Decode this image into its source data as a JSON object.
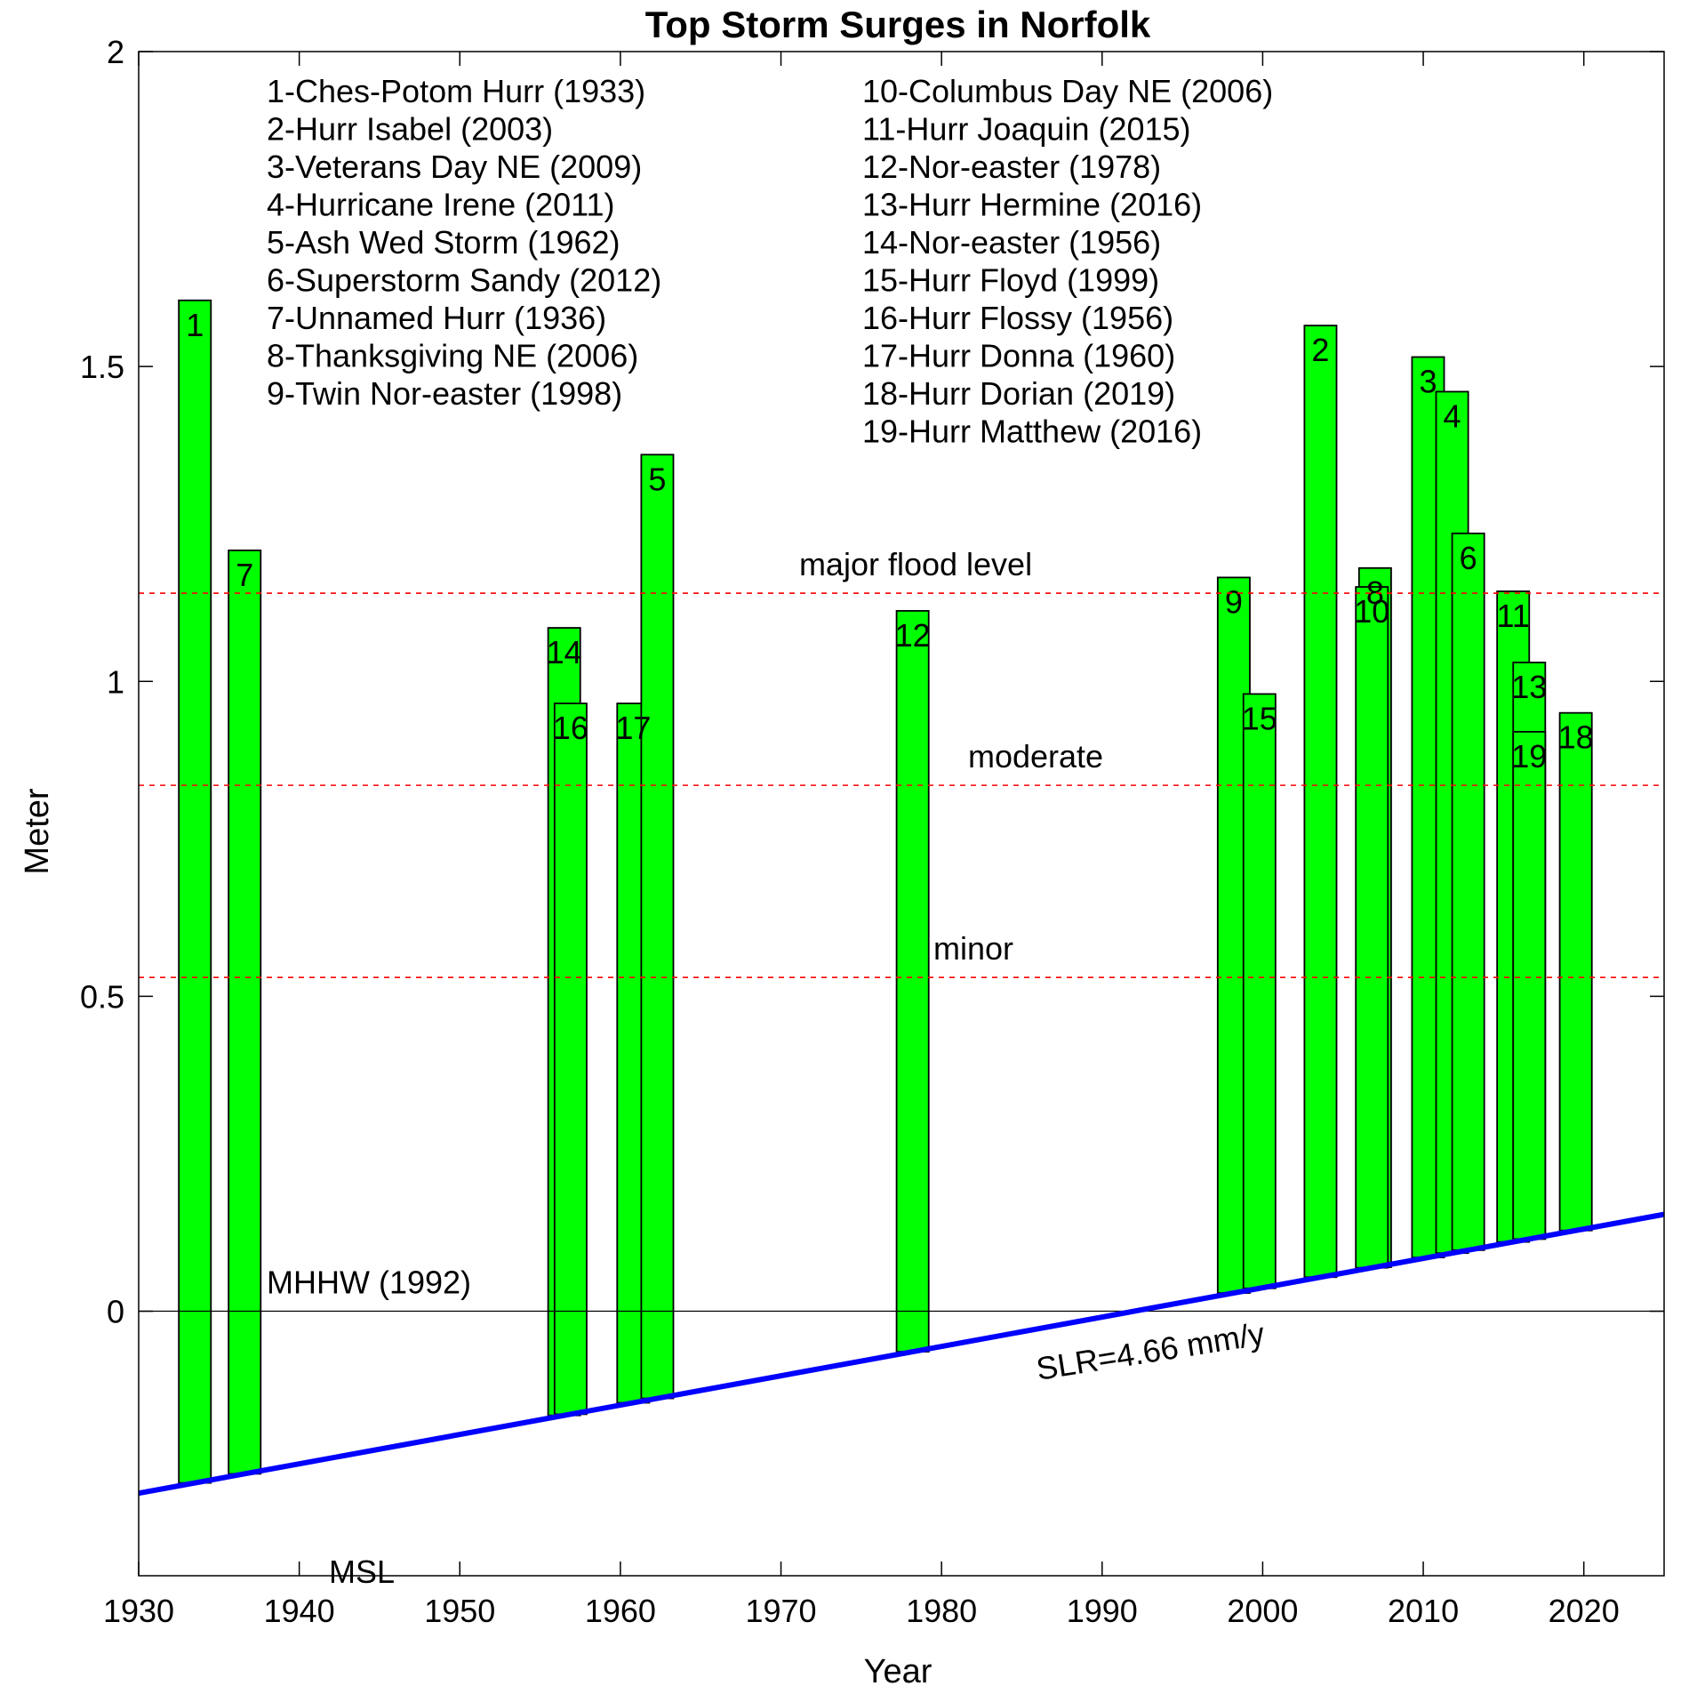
{
  "chart_data": {
    "type": "bar",
    "title": "Top Storm Surges in Norfolk",
    "xlabel": "Year",
    "ylabel": "Meter",
    "xlim": [
      1930,
      2025
    ],
    "ylim": [
      -0.42,
      2
    ],
    "xticks": [
      1930,
      1940,
      1950,
      1960,
      1970,
      1980,
      1990,
      2000,
      2010,
      2020
    ],
    "yticks": [
      0,
      0.5,
      1,
      1.5,
      2
    ],
    "ytick_labels": [
      "0",
      "0.5",
      "1",
      "1.5",
      "2"
    ],
    "grid": false,
    "bar_color": "#00ff00",
    "bar_edge_color": "#000000",
    "bar_width_years": 2,
    "trend": {
      "label": "SLR=4.66 mm/y",
      "color": "#0000ff",
      "rate_m_per_year": 0.00466,
      "zero_year": 1992
    },
    "reference_lines": [
      {
        "label": "major flood level",
        "value": 1.14,
        "color": "#ff0000"
      },
      {
        "label": "moderate",
        "value": 0.835,
        "color": "#ff0000"
      },
      {
        "label": "minor",
        "value": 0.53,
        "color": "#ff0000"
      },
      {
        "label": "MHHW (1992)",
        "value": 0,
        "color": "#000000"
      }
    ],
    "msl_label": "MSL",
    "legend_left": [
      "1-Ches-Potom Hurr (1933)",
      "2-Hurr Isabel (2003)",
      "3-Veterans Day NE (2009)",
      "4-Hurricane Irene (2011)",
      "5-Ash Wed Storm (1962)",
      "6-Superstorm Sandy (2012)",
      "7-Unnamed Hurr (1936)",
      "8-Thanksgiving NE (2006)",
      "9-Twin Nor-easter (1998)"
    ],
    "legend_right": [
      "10-Columbus Day NE (2006)",
      "11-Hurr Joaquin (2015)",
      "12-Nor-easter (1978)",
      "13-Hurr Hermine (2016)",
      "14-Nor-easter (1956)",
      "15-Hurr Floyd (1999)",
      "16-Hurr Flossy (1956)",
      "17-Hurr Donna (1960)",
      "18-Hurr Dorian (2019)",
      "19-Hurr Matthew (2016)"
    ],
    "bars": [
      {
        "label": "1",
        "year": 1933.5,
        "top": 1.605
      },
      {
        "label": "7",
        "year": 1936.6,
        "top": 1.208
      },
      {
        "label": "14",
        "year": 1956.5,
        "top": 1.085
      },
      {
        "label": "16",
        "year": 1956.9,
        "top": 0.965
      },
      {
        "label": "17",
        "year": 1960.8,
        "top": 0.965
      },
      {
        "label": "5",
        "year": 1962.3,
        "top": 1.36
      },
      {
        "label": "12",
        "year": 1978.2,
        "top": 1.112
      },
      {
        "label": "9",
        "year": 1998.2,
        "top": 1.165
      },
      {
        "label": "15",
        "year": 1999.8,
        "top": 0.98
      },
      {
        "label": "2",
        "year": 2003.6,
        "top": 1.565
      },
      {
        "label": "8",
        "year": 2007.0,
        "top": 1.18
      },
      {
        "label": "10",
        "year": 2006.8,
        "top": 1.15
      },
      {
        "label": "3",
        "year": 2010.3,
        "top": 1.515
      },
      {
        "label": "4",
        "year": 2011.8,
        "top": 1.46
      },
      {
        "label": "6",
        "year": 2012.8,
        "top": 1.235
      },
      {
        "label": "11",
        "year": 2015.6,
        "top": 1.143
      },
      {
        "label": "13",
        "year": 2016.6,
        "top": 1.03
      },
      {
        "label": "19",
        "year": 2016.6,
        "top": 0.92
      },
      {
        "label": "18",
        "year": 2019.5,
        "top": 0.95
      }
    ]
  }
}
